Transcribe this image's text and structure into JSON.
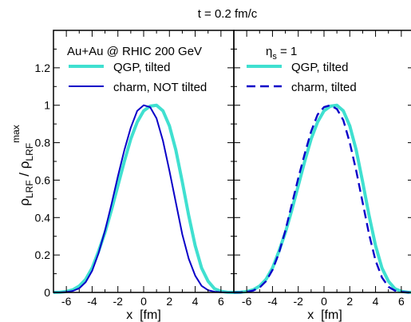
{
  "figure_title": "t = 0.2 fm/c",
  "y_axis": {
    "main": "ρ",
    "sub1": "LRF",
    "slash": " / ρ",
    "sub2": "LRF",
    "sup": "max"
  },
  "colors": {
    "qgp": "#40e0d0",
    "charm": "#0a00c8",
    "axis": "#000000"
  },
  "chart_data": [
    {
      "type": "line",
      "panel": "left",
      "annotation": "Au+Au @ RHIC 200 GeV",
      "xlabel": "x  [fm]",
      "xlim": [
        -7,
        7
      ],
      "ylim": [
        0,
        1.4
      ],
      "xticks": [
        -6,
        -4,
        -2,
        0,
        2,
        4,
        6
      ],
      "yticks": [
        0,
        0.2,
        0.4,
        0.6,
        0.8,
        1,
        1.2
      ],
      "yticklabels": [
        "0",
        "0.2",
        "0.4",
        "0.6",
        "0.8",
        "1",
        "1.2"
      ],
      "legend_position": "top-left",
      "series": [
        {
          "name": "QGP, tilted",
          "style": "thick",
          "x": [
            -7,
            -6.5,
            -6,
            -5.5,
            -5,
            -4.5,
            -4,
            -3.5,
            -3,
            -2.5,
            -2,
            -1.5,
            -1,
            -0.5,
            0,
            0.5,
            1,
            1.5,
            2,
            2.5,
            3,
            3.5,
            4,
            4.5,
            5,
            5.5,
            6,
            6.5,
            7
          ],
          "y": [
            0.0,
            0.001,
            0.005,
            0.014,
            0.034,
            0.07,
            0.13,
            0.22,
            0.32,
            0.44,
            0.57,
            0.7,
            0.82,
            0.91,
            0.97,
            0.995,
            1.0,
            0.97,
            0.89,
            0.76,
            0.59,
            0.41,
            0.25,
            0.13,
            0.06,
            0.02,
            0.006,
            0.001,
            0.0
          ]
        },
        {
          "name": "charm, NOT tilted",
          "style": "solid",
          "x": [
            -7,
            -6.5,
            -6,
            -5.5,
            -5,
            -4.5,
            -4,
            -3.5,
            -3,
            -2.5,
            -2,
            -1.5,
            -1,
            -0.5,
            0,
            0.5,
            1,
            1.5,
            2,
            2.5,
            3,
            3.5,
            4,
            4.5,
            5,
            5.5,
            6,
            6.5,
            7
          ],
          "y": [
            0.0,
            0.0,
            0.002,
            0.008,
            0.022,
            0.055,
            0.115,
            0.21,
            0.33,
            0.47,
            0.62,
            0.76,
            0.88,
            0.97,
            1.0,
            0.99,
            0.93,
            0.81,
            0.65,
            0.48,
            0.31,
            0.18,
            0.09,
            0.035,
            0.012,
            0.004,
            0.001,
            0.0,
            0.0
          ]
        }
      ]
    },
    {
      "type": "line",
      "panel": "right",
      "annotation": {
        "main": "η",
        "sub": "s",
        "rest": " = 1"
      },
      "xlabel": "x  [fm]",
      "xlim": [
        -7,
        7
      ],
      "ylim": [
        0,
        1.4
      ],
      "xticks": [
        -6,
        -4,
        -2,
        0,
        2,
        4,
        6
      ],
      "legend_position": "top-left",
      "series": [
        {
          "name": "QGP, tilted",
          "style": "thick",
          "x": [
            -7,
            -6.5,
            -6,
            -5.5,
            -5,
            -4.5,
            -4,
            -3.5,
            -3,
            -2.5,
            -2,
            -1.5,
            -1,
            -0.5,
            0,
            0.5,
            1,
            1.5,
            2,
            2.5,
            3,
            3.5,
            4,
            4.5,
            5,
            5.5,
            6,
            6.5,
            7
          ],
          "y": [
            0.0,
            0.001,
            0.005,
            0.014,
            0.034,
            0.07,
            0.13,
            0.22,
            0.32,
            0.44,
            0.57,
            0.7,
            0.82,
            0.91,
            0.97,
            0.995,
            1.0,
            0.97,
            0.89,
            0.76,
            0.59,
            0.41,
            0.25,
            0.13,
            0.06,
            0.02,
            0.006,
            0.001,
            0.0
          ]
        },
        {
          "name": "charm, tilted",
          "style": "dashed",
          "x": [
            -7,
            -6.5,
            -6,
            -5.5,
            -5,
            -4.5,
            -4,
            -3.5,
            -3,
            -2.5,
            -2,
            -1.5,
            -1,
            -0.5,
            0,
            0.5,
            1,
            1.5,
            2,
            2.5,
            3,
            3.5,
            4,
            4.5,
            5,
            5.5,
            6,
            6.5,
            7
          ],
          "y": [
            0.0,
            0.0,
            0.003,
            0.01,
            0.026,
            0.06,
            0.12,
            0.21,
            0.33,
            0.47,
            0.61,
            0.74,
            0.86,
            0.95,
            0.99,
            1.0,
            0.98,
            0.92,
            0.8,
            0.65,
            0.48,
            0.31,
            0.17,
            0.08,
            0.03,
            0.01,
            0.003,
            0.0,
            0.0
          ]
        }
      ]
    }
  ]
}
